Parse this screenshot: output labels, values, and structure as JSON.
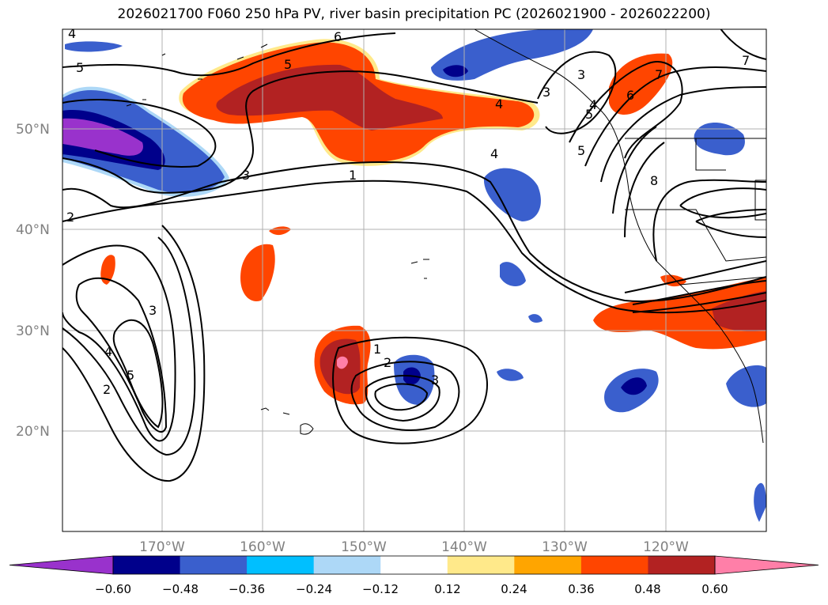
{
  "title": "2026021700 F060 250 hPa PV, river basin precipitation PC (2026021900 - 2026022200)",
  "map": {
    "lat_labels": [
      "50°N",
      "40°N",
      "30°N",
      "20°N"
    ],
    "lon_labels": [
      "170°W",
      "160°W",
      "150°W",
      "140°W",
      "130°W",
      "120°W"
    ],
    "contour_labels": [
      "4",
      "5",
      "6",
      "5",
      "3",
      "4",
      "3",
      "5",
      "7",
      "6",
      "7",
      "1",
      "4",
      "3",
      "2",
      "5",
      "4",
      "8",
      "3",
      "5",
      "4",
      "2",
      "1",
      "2",
      "3"
    ]
  },
  "colorbar": {
    "ticks": [
      "−0.60",
      "−0.48",
      "−0.36",
      "−0.24",
      "−0.12",
      "0.12",
      "0.24",
      "0.36",
      "0.48",
      "0.60"
    ],
    "colors": [
      "#9932cc",
      "#00008b",
      "#3a5fcd",
      "#00bfff",
      "#add8f7",
      "#ffffff",
      "#ffe98a",
      "#ffa500",
      "#ff4500",
      "#b22222",
      "#ff7fa8"
    ]
  }
}
